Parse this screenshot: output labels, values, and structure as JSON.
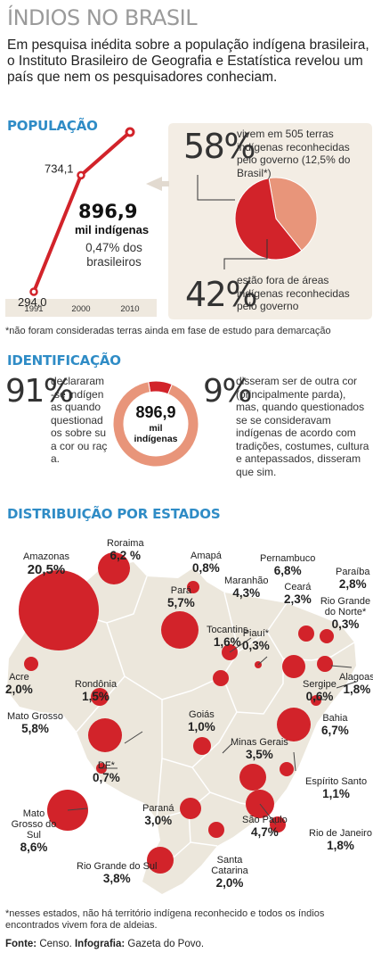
{
  "header": {
    "title": "ÍNDIOS NO BRASIL",
    "intro": "Em pesquisa inédita sobre a população indígena brasileira, o Instituto Brasileiro de Geografia e Estatística revelou um país que nem os pesquisadores conheciam."
  },
  "populacao": {
    "heading": "POPULAÇÃO",
    "highlight_value": "896,9",
    "highlight_unit": "mil indígenas",
    "highlight_share": "0,47% dos brasileiros",
    "terras": {
      "pct_inside": "58%",
      "text_inside": "vivem em 505 terras indígenas reconhecidas pelo governo (12,5% do Brasil*)",
      "pct_outside": "42%",
      "text_outside": "estão fora de áreas indígenas reconhecidas pelo governo"
    },
    "footnote": "*não foram consideradas terras ainda em fase de estudo para demarcação"
  },
  "identificacao": {
    "heading": "IDENTIFICAÇÃO",
    "pct_left": "91%",
    "text_left": "declararam-se indígenas quando questionados sobre sua cor ou raça.",
    "donut_value": "896,9",
    "donut_unit": "mil indígenas",
    "pct_right": "9%",
    "text_right": "disseram ser de outra cor (principalmente parda), mas, quando questionados se se consideravam indígenas de acordo com tradições, costumes, cultura e antepassados, disseram que sim."
  },
  "distribuicao": {
    "heading": "DISTRIBUIÇÃO POR ESTADOS"
  },
  "footer": {
    "note": "*nesses estados, não há território indígena reconhecido e todos os índios encontrados vivem fora de aldeias.",
    "source_label": "Fonte:",
    "source": "Censo.",
    "credit_label": "Infografia:",
    "credit": "Gazeta do Povo."
  },
  "colors": {
    "red": "#d2232a",
    "salmon": "#e8957a",
    "map": "#ece7dc",
    "panel": "#f3ede4",
    "heading_blue": "#2f8cc6"
  },
  "chart_data": [
    {
      "type": "line",
      "x": [
        "1991",
        "2000",
        "2010"
      ],
      "values": [
        294.0,
        734.1,
        896.9
      ],
      "labels": [
        "294,0",
        "734,1",
        "896,9"
      ]
    },
    {
      "type": "pie",
      "categories": [
        "vivem em terras indígenas reconhecidas",
        "fora de áreas indígenas reconhecidas"
      ],
      "values": [
        58,
        42
      ]
    },
    {
      "type": "pie",
      "categories": [
        "declararam-se indígenas",
        "outra cor"
      ],
      "values": [
        91,
        9
      ]
    },
    {
      "type": "scatter",
      "states": [
        {
          "name": "Amazonas",
          "value": "20,5%"
        },
        {
          "name": "Roraima",
          "value": "6,2 %"
        },
        {
          "name": "Amapá",
          "value": "0,8%"
        },
        {
          "name": "Pará",
          "value": "5,7%"
        },
        {
          "name": "Maranhão",
          "value": "4,3%"
        },
        {
          "name": "Pernambuco",
          "value": "6,8%"
        },
        {
          "name": "Ceará",
          "value": "2,3%"
        },
        {
          "name": "Paraíba",
          "value": "2,8%"
        },
        {
          "name": "Rio Grande do Norte*",
          "value": "0,3%"
        },
        {
          "name": "Tocantins",
          "value": "1,6%"
        },
        {
          "name": "Piauí*",
          "value": "0,3%"
        },
        {
          "name": "Alagoas",
          "value": "1,8%"
        },
        {
          "name": "Sergipe",
          "value": "0,6%"
        },
        {
          "name": "Acre",
          "value": "2,0%"
        },
        {
          "name": "Rondônia",
          "value": "1,5%"
        },
        {
          "name": "Goiás",
          "value": "1,0%"
        },
        {
          "name": "Bahia",
          "value": "6,7%"
        },
        {
          "name": "Mato Grosso",
          "value": "5,8%"
        },
        {
          "name": "Minas Gerais",
          "value": "3,5%"
        },
        {
          "name": "DF*",
          "value": "0,7%"
        },
        {
          "name": "Espírito Santo",
          "value": "1,1%"
        },
        {
          "name": "Mato Grosso do Sul",
          "value": "8,6%"
        },
        {
          "name": "Paraná",
          "value": "3,0%"
        },
        {
          "name": "São Paulo",
          "value": "4,7%"
        },
        {
          "name": "Rio de Janeiro",
          "value": "1,8%"
        },
        {
          "name": "Santa Catarina",
          "value": "2,0%"
        },
        {
          "name": "Rio Grande do Sul",
          "value": "3,8%"
        }
      ]
    }
  ]
}
